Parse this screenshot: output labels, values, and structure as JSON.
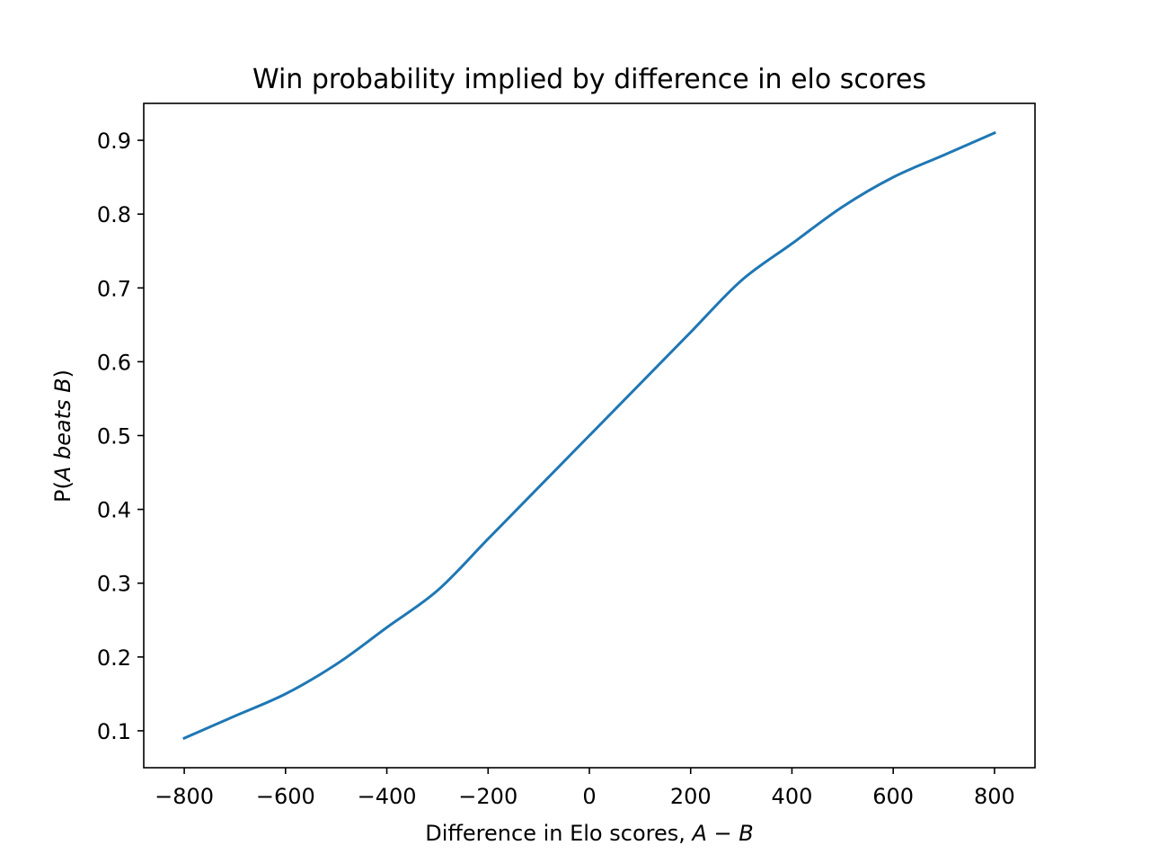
{
  "chart_data": {
    "type": "line",
    "title": "Win probability implied by difference in elo scores",
    "xlabel_text": "Difference in Elo scores, ",
    "xlabel_math": "A − B",
    "ylabel_prefix": "P(",
    "ylabel_math": "A beats B",
    "ylabel_suffix": ")",
    "xlim": [
      -880,
      880
    ],
    "ylim": [
      0.05,
      0.95
    ],
    "x_ticks": [
      -800,
      -600,
      -400,
      -200,
      0,
      200,
      400,
      600,
      800
    ],
    "x_tick_labels": [
      "−800",
      "−600",
      "−400",
      "−200",
      "0",
      "200",
      "400",
      "600",
      "800"
    ],
    "y_ticks": [
      0.1,
      0.2,
      0.3,
      0.4,
      0.5,
      0.6,
      0.7,
      0.8,
      0.9
    ],
    "y_tick_labels": [
      "0.1",
      "0.2",
      "0.3",
      "0.4",
      "0.5",
      "0.6",
      "0.7",
      "0.8",
      "0.9"
    ],
    "grid": false,
    "series": [
      {
        "color": "#1f77b4",
        "x": [
          -800,
          -700,
          -600,
          -500,
          -400,
          -300,
          -200,
          -100,
          0,
          100,
          200,
          300,
          400,
          500,
          600,
          700,
          800
        ],
        "y": [
          0.09,
          0.12,
          0.15,
          0.19,
          0.24,
          0.29,
          0.36,
          0.43,
          0.5,
          0.57,
          0.64,
          0.71,
          0.76,
          0.81,
          0.85,
          0.88,
          0.91
        ]
      }
    ]
  }
}
